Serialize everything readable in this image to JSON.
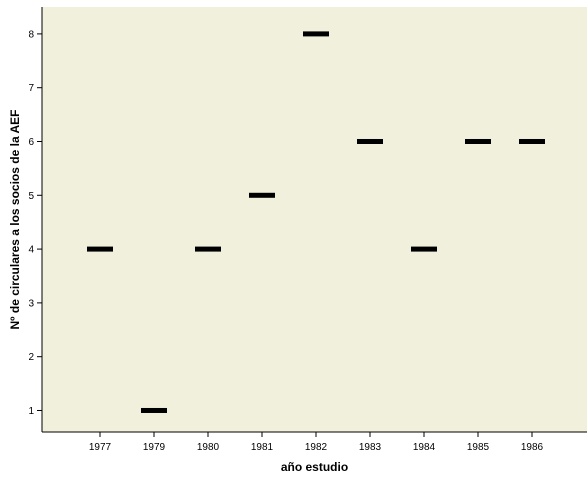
{
  "chart_data": {
    "type": "scatter",
    "marker": "horizontal-bar",
    "categories": [
      "1977",
      "1979",
      "1980",
      "1981",
      "1982",
      "1983",
      "1984",
      "1985",
      "1986"
    ],
    "values": [
      4,
      1,
      4,
      5,
      8,
      6,
      4,
      6,
      6
    ],
    "xlabel": "año estudio",
    "ylabel": "Nº de circulares a los socios de la AEF",
    "ylim": [
      0.6,
      8.5
    ],
    "yticks": [
      1,
      2,
      3,
      4,
      5,
      6,
      7,
      8
    ],
    "grid": false,
    "legend": "none",
    "colors": {
      "plot_background": "#f0f0dc",
      "marker": "#000000",
      "axis": "#000000"
    }
  }
}
